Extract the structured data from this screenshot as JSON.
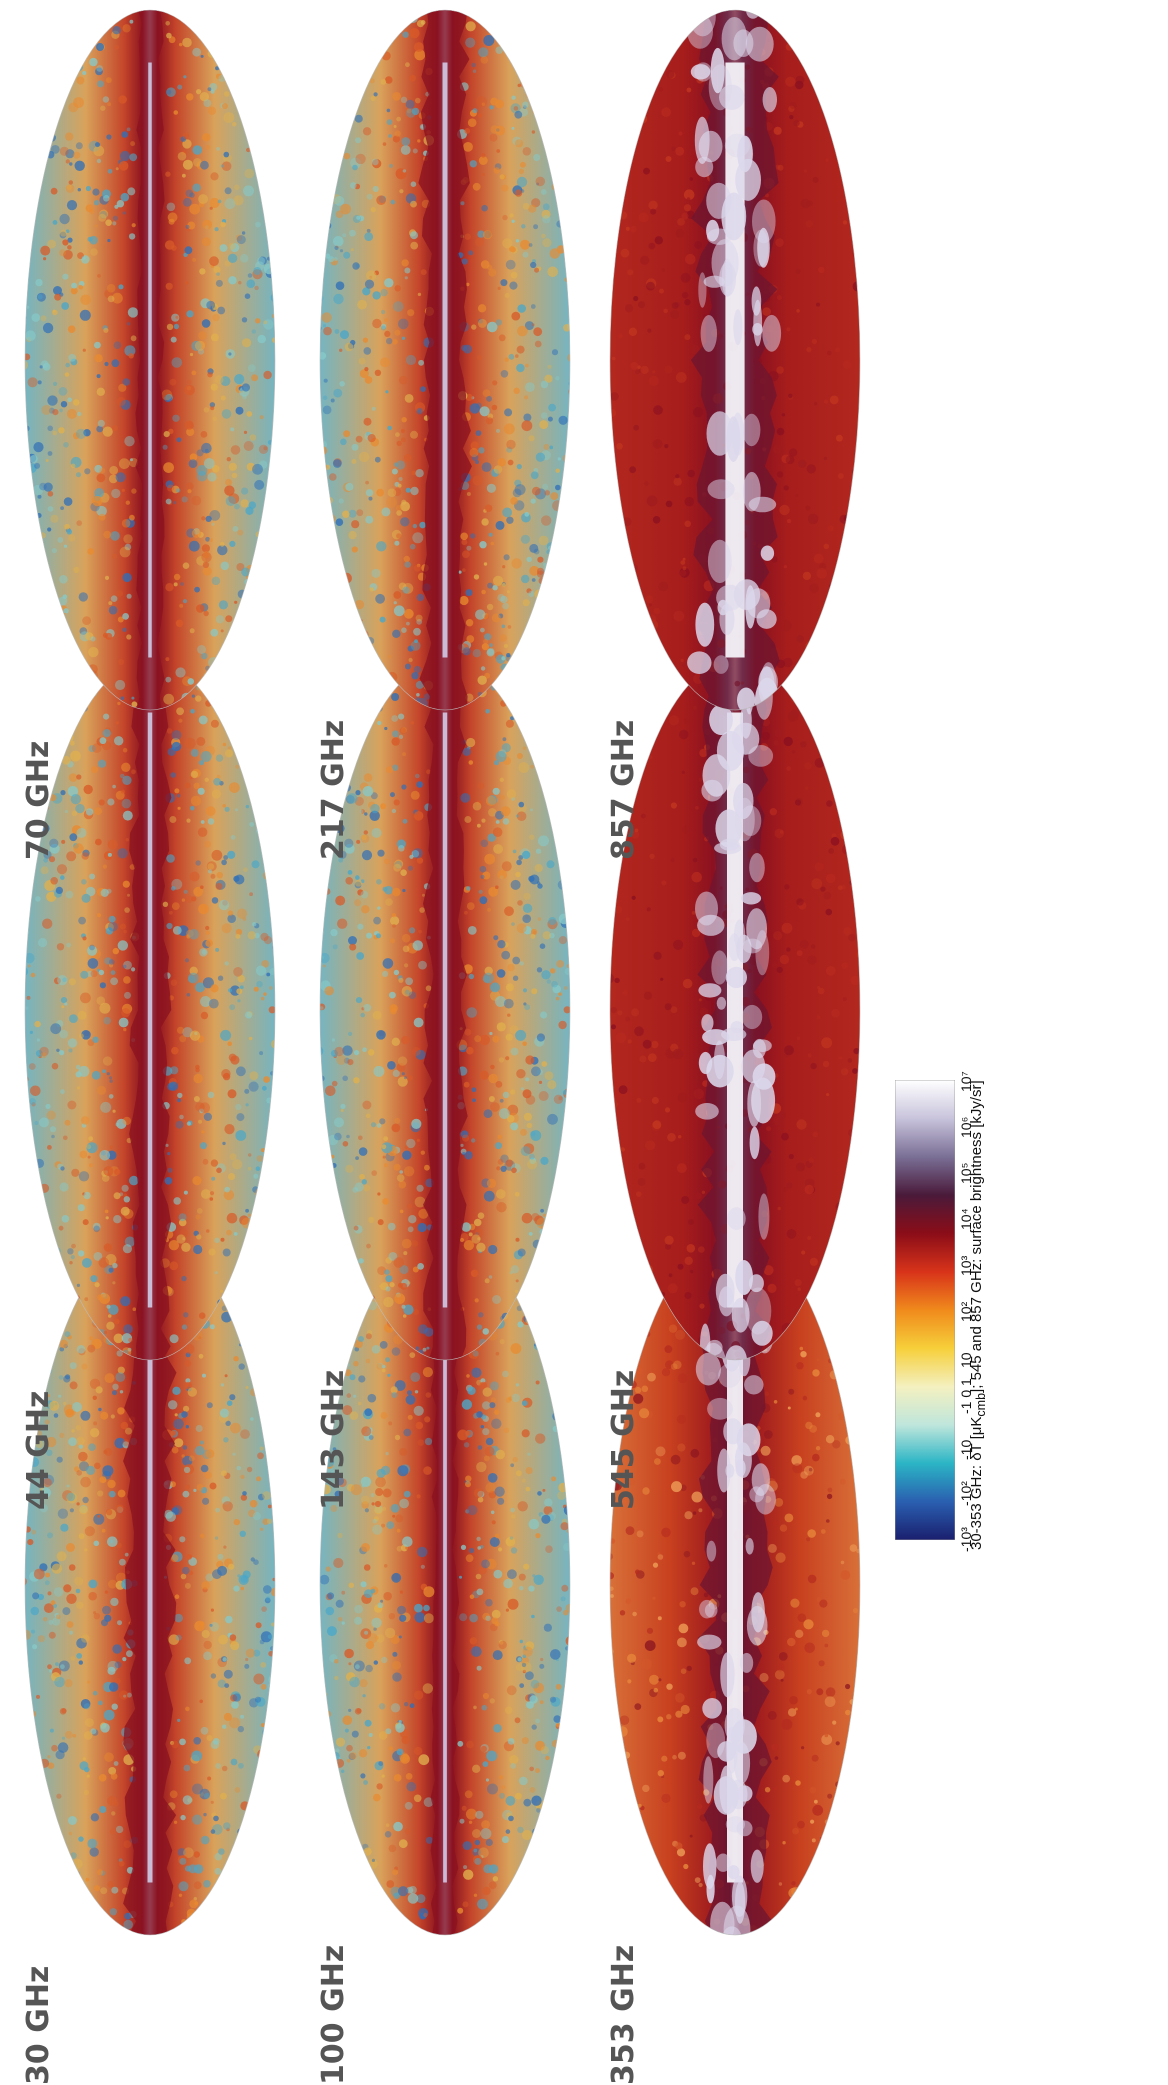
{
  "maps": [
    {
      "id": "m30",
      "label": "30 GHz",
      "style": "cmb",
      "band": 1.0,
      "bright": 1.0
    },
    {
      "id": "m44",
      "label": "44 GHz",
      "style": "cmb",
      "band": 0.8,
      "bright": 0.9
    },
    {
      "id": "m70",
      "label": "70 GHz",
      "style": "cmb",
      "band": 0.55,
      "bright": 0.7
    },
    {
      "id": "m100",
      "label": "100 GHz",
      "style": "cmb",
      "band": 0.55,
      "bright": 0.75
    },
    {
      "id": "m143",
      "label": "143 GHz",
      "style": "cmb",
      "band": 0.85,
      "bright": 0.9
    },
    {
      "id": "m217",
      "label": "217 GHz",
      "style": "cmb",
      "band": 1.0,
      "bright": 1.0
    },
    {
      "id": "m353",
      "label": "353 GHz",
      "style": "dust_orange",
      "band": 1.0,
      "bright": 1.0
    },
    {
      "id": "m545",
      "label": "545 GHz",
      "style": "dust_red",
      "band": 1.0,
      "bright": 1.0
    },
    {
      "id": "m857",
      "label": "857 GHz",
      "style": "dust_red",
      "band": 1.2,
      "bright": 1.0
    }
  ],
  "colorbar": {
    "ticks": [
      "-10³",
      "-10²",
      "-10",
      "-1 0 1",
      "10",
      "10²",
      "10³",
      "10⁴",
      "10⁵",
      "10⁶",
      "10⁷"
    ],
    "caption": "30-353 GHz: δT [μK",
    "caption_sub": "cmb",
    "caption_rest": "]; 545 and 857 GHz: surface brightness [kJy/sr]",
    "colors": [
      "#1a1f6e",
      "#2a5fb0",
      "#2bb5c5",
      "#bfe6dc",
      "#f4f0c0",
      "#f6cf3a",
      "#f08a1c",
      "#d8331a",
      "#8a0d18",
      "#4a1a3a",
      "#7a6f96",
      "#c9c4dc",
      "#ffffff"
    ]
  }
}
